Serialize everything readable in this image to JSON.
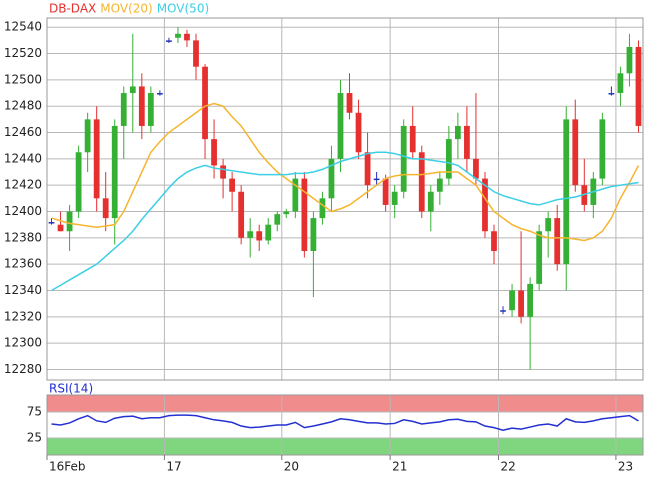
{
  "chart_data": [
    {
      "type": "candlestick",
      "categories": [
        "16Feb",
        null,
        null,
        null,
        null,
        null,
        null,
        null,
        null,
        null,
        null,
        null,
        null,
        "17",
        null,
        null,
        null,
        null,
        null,
        null,
        null,
        null,
        null,
        null,
        null,
        null,
        "20",
        null,
        null,
        null,
        null,
        null,
        null,
        null,
        null,
        null,
        null,
        null,
        "21",
        null,
        null,
        null,
        null,
        null,
        null,
        null,
        null,
        null,
        null,
        null,
        "22",
        null,
        null,
        null,
        null,
        null,
        null,
        null,
        null,
        null,
        null,
        null,
        null,
        "23",
        null,
        null
      ],
      "series": [
        {
          "name": "DB-DAX",
          "color": "#e53030",
          "up_color": "#35b035",
          "down_color": "#e53030",
          "flat_color": "#2233bb",
          "open": [
            12392,
            12390,
            12385,
            12400,
            12445,
            12470,
            12410,
            12395,
            12465,
            12490,
            12495,
            12465,
            12490,
            12530,
            12532,
            12535,
            12530,
            12510,
            12455,
            12435,
            12425,
            12415,
            12380,
            12385,
            12378,
            12390,
            12398,
            12400,
            12425,
            12370,
            12395,
            12410,
            12440,
            12490,
            12475,
            12445,
            12425,
            12425,
            12405,
            12415,
            12465,
            12445,
            12400,
            12415,
            12425,
            12455,
            12465,
            12440,
            12425,
            12385,
            12325,
            12325,
            12340,
            12320,
            12345,
            12385,
            12395,
            12360,
            12470,
            12420,
            12405,
            12425,
            12490,
            12490,
            12505,
            12525
          ],
          "high": [
            12395,
            12400,
            12405,
            12450,
            12475,
            12480,
            12430,
            12470,
            12495,
            12535,
            12505,
            12495,
            12492,
            12532,
            12540,
            12538,
            12535,
            12512,
            12470,
            12440,
            12430,
            12420,
            12395,
            12390,
            12395,
            12400,
            12402,
            12430,
            12430,
            12400,
            12415,
            12450,
            12500,
            12505,
            12485,
            12460,
            12430,
            12428,
            12420,
            12470,
            12480,
            12450,
            12420,
            12430,
            12465,
            12475,
            12480,
            12490,
            12430,
            12390,
            12328,
            12345,
            12385,
            12350,
            12390,
            12400,
            12405,
            12480,
            12485,
            12440,
            12430,
            12475,
            12495,
            12510,
            12535,
            12530
          ],
          "low": [
            12390,
            12385,
            12370,
            12395,
            12430,
            12400,
            12385,
            12375,
            12440,
            12460,
            12455,
            12460,
            12488,
            12528,
            12528,
            12525,
            12500,
            12440,
            12425,
            12410,
            12400,
            12375,
            12365,
            12370,
            12375,
            12385,
            12395,
            12395,
            12365,
            12335,
            12390,
            12400,
            12430,
            12470,
            12440,
            12410,
            12420,
            12400,
            12395,
            12410,
            12440,
            12395,
            12385,
            12405,
            12420,
            12440,
            12430,
            12420,
            12380,
            12360,
            12322,
            12320,
            12315,
            12280,
            12340,
            12365,
            12355,
            12340,
            12415,
            12400,
            12395,
            12420,
            12488,
            12480,
            12495,
            12460
          ],
          "close": [
            12392,
            12385,
            12400,
            12445,
            12470,
            12410,
            12395,
            12465,
            12490,
            12495,
            12465,
            12490,
            12490,
            12530,
            12535,
            12530,
            12510,
            12455,
            12435,
            12425,
            12415,
            12380,
            12385,
            12378,
            12390,
            12398,
            12400,
            12425,
            12370,
            12395,
            12410,
            12440,
            12490,
            12475,
            12445,
            12420,
            12425,
            12405,
            12415,
            12465,
            12445,
            12400,
            12415,
            12425,
            12455,
            12465,
            12440,
            12425,
            12385,
            12370,
            12325,
            12340,
            12320,
            12345,
            12385,
            12395,
            12360,
            12470,
            12420,
            12405,
            12425,
            12470,
            12490,
            12505,
            12525,
            12465
          ]
        },
        {
          "name": "MOV(20)",
          "color": "#f5b52e",
          "values": [
            12395,
            12393,
            12391,
            12390,
            12389,
            12388,
            12389,
            12390,
            12400,
            12415,
            12430,
            12445,
            12453,
            12460,
            12465,
            12470,
            12475,
            12480,
            12482,
            12480,
            12472,
            12465,
            12455,
            12445,
            12437,
            12430,
            12425,
            12420,
            12415,
            12410,
            12405,
            12400,
            12402,
            12405,
            12410,
            12415,
            12420,
            12425,
            12427,
            12428,
            12428,
            12428,
            12429,
            12430,
            12430,
            12430,
            12425,
            12420,
            12410,
            12400,
            12395,
            12390,
            12387,
            12385,
            12382,
            12380,
            12380,
            12380,
            12379,
            12378,
            12380,
            12385,
            12395,
            12410,
            12422,
            12435
          ]
        },
        {
          "name": "MOV(50)",
          "color": "#3ccfe6",
          "values": [
            12340,
            12344,
            12348,
            12352,
            12356,
            12360,
            12366,
            12372,
            12378,
            12385,
            12394,
            12402,
            12410,
            12418,
            12425,
            12430,
            12433,
            12435,
            12433,
            12432,
            12431,
            12430,
            12429,
            12428,
            12428,
            12428,
            12428,
            12429,
            12429,
            12430,
            12432,
            12435,
            12438,
            12440,
            12442,
            12444,
            12445,
            12445,
            12444,
            12442,
            12440,
            12440,
            12439,
            12438,
            12437,
            12435,
            12430,
            12425,
            12420,
            12415,
            12412,
            12410,
            12408,
            12406,
            12405,
            12407,
            12409,
            12410,
            12411,
            12413,
            12415,
            12417,
            12419,
            12420,
            12421,
            12422
          ]
        }
      ],
      "ylim": [
        12272,
        12547
      ],
      "yticks": [
        12280,
        12300,
        12320,
        12340,
        12360,
        12380,
        12400,
        12420,
        12440,
        12460,
        12480,
        12500,
        12520,
        12540
      ],
      "grid": true
    },
    {
      "type": "line",
      "series": [
        {
          "name": "RSI(14)",
          "color": "#2430d0",
          "values": [
            52,
            50,
            54,
            62,
            68,
            58,
            55,
            63,
            66,
            67,
            62,
            64,
            64,
            68,
            69,
            69,
            68,
            64,
            60,
            58,
            55,
            48,
            45,
            46,
            48,
            50,
            50,
            55,
            45,
            48,
            52,
            56,
            62,
            60,
            57,
            54,
            54,
            52,
            53,
            60,
            57,
            52,
            54,
            56,
            60,
            61,
            57,
            56,
            48,
            45,
            40,
            44,
            42,
            46,
            50,
            52,
            48,
            62,
            56,
            55,
            58,
            62,
            64,
            66,
            68,
            58
          ]
        }
      ],
      "ylim": [
        0,
        100
      ],
      "yticks": [
        25,
        75
      ],
      "upper_band_color": "#f08c8c",
      "lower_band_color": "#7fd67f",
      "grid": true
    }
  ]
}
